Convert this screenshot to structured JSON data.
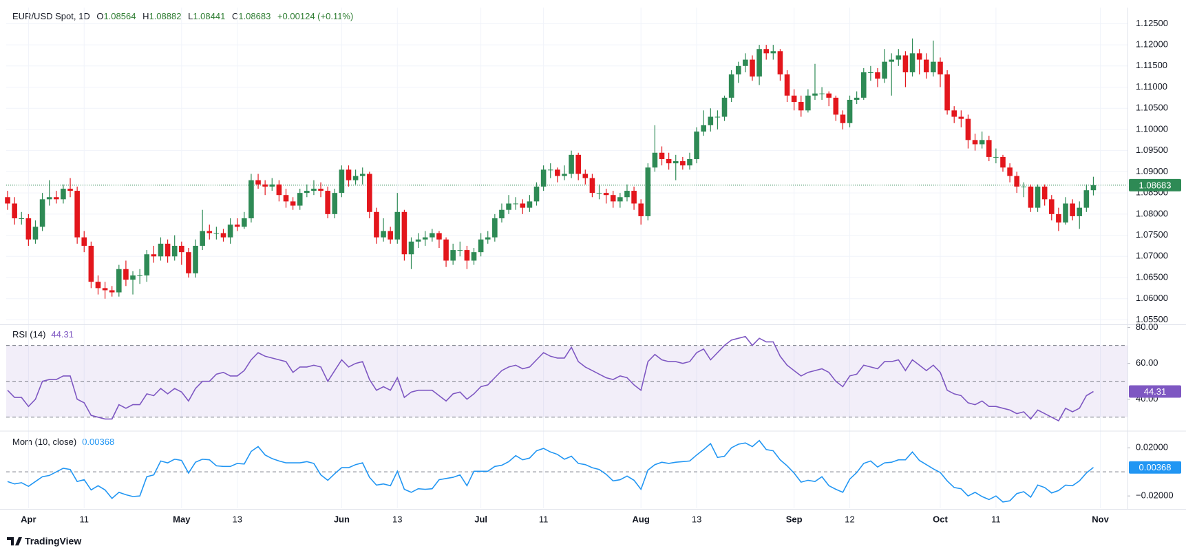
{
  "brand": "TradingView",
  "chart_data": [
    {
      "type": "candlestick",
      "title": "EUR/USD Spot, 1D",
      "ohlc_labels": [
        "O",
        "H",
        "L",
        "C"
      ],
      "change": "+0.00124 (+0.11%)",
      "open": [
        1.084,
        1.0825,
        1.079,
        1.079,
        1.074,
        1.077,
        1.0835,
        1.084,
        1.0835,
        1.086,
        1.0855,
        1.0745,
        1.0725,
        1.064,
        1.0625,
        1.062,
        1.0615,
        1.067,
        1.0645,
        1.0655,
        1.0655,
        1.0705,
        1.07,
        1.073,
        1.07,
        1.0725,
        1.071,
        1.066,
        1.0725,
        1.076,
        1.0755,
        1.0755,
        1.0745,
        1.0775,
        1.077,
        1.079,
        1.088,
        1.087,
        1.0865,
        1.087,
        1.0845,
        1.083,
        1.082,
        1.085,
        1.0855,
        1.086,
        1.0855,
        1.08,
        1.085,
        1.0905,
        1.088,
        1.089,
        1.0895,
        1.0805,
        1.0745,
        1.076,
        1.074,
        1.0805,
        1.0705,
        1.0735,
        1.074,
        1.0745,
        1.0755,
        1.074,
        1.069,
        1.0715,
        1.0715,
        1.069,
        1.071,
        1.074,
        1.0745,
        1.079,
        1.081,
        1.0825,
        1.0825,
        1.0815,
        1.083,
        1.0865,
        1.0905,
        1.0905,
        1.089,
        1.0895,
        1.094,
        1.0895,
        1.0885,
        1.085,
        1.085,
        1.0845,
        1.083,
        1.084,
        1.0855,
        1.0825,
        1.0795,
        1.091,
        1.0945,
        1.093,
        1.092,
        1.0925,
        1.0915,
        1.093,
        1.0995,
        1.101,
        1.103,
        1.103,
        1.1075,
        1.113,
        1.115,
        1.1165,
        1.1125,
        1.119,
        1.118,
        1.1185,
        1.113,
        1.108,
        1.1065,
        1.1045,
        1.108,
        1.1085,
        1.1085,
        1.1075,
        1.1035,
        1.1015,
        1.107,
        1.1075,
        1.1135,
        1.1135,
        1.112,
        1.116,
        1.1165,
        1.1175,
        1.1135,
        1.118,
        1.1165,
        1.1135,
        1.116,
        1.113,
        1.1045,
        1.103,
        1.1025,
        1.0975,
        1.0965,
        1.0975,
        1.0935,
        1.0935,
        1.091,
        1.089,
        1.0865,
        1.0865,
        1.0815,
        1.0865,
        1.0835,
        1.08,
        1.078,
        1.0825,
        1.0795,
        1.0815,
        1.08564
      ],
      "high": [
        1.0855,
        1.084,
        1.0805,
        1.08,
        1.0785,
        1.085,
        1.088,
        1.0855,
        1.087,
        1.0885,
        1.0865,
        1.076,
        1.0735,
        1.0655,
        1.064,
        1.063,
        1.068,
        1.069,
        1.0665,
        1.067,
        1.0715,
        1.0725,
        1.0745,
        1.074,
        1.075,
        1.0735,
        1.072,
        1.074,
        1.081,
        1.0775,
        1.077,
        1.0765,
        1.079,
        1.079,
        1.0805,
        1.0895,
        1.0895,
        1.088,
        1.0885,
        1.088,
        1.086,
        1.084,
        1.086,
        1.087,
        1.088,
        1.0875,
        1.0865,
        1.086,
        1.0915,
        1.0915,
        1.0905,
        1.091,
        1.09,
        1.0815,
        1.079,
        1.077,
        1.085,
        1.081,
        1.0745,
        1.0755,
        1.076,
        1.0765,
        1.076,
        1.0745,
        1.073,
        1.0735,
        1.0725,
        1.072,
        1.0755,
        1.076,
        1.08,
        1.0825,
        1.0845,
        1.084,
        1.0835,
        1.0845,
        1.0875,
        1.0915,
        1.092,
        1.091,
        1.0915,
        1.095,
        1.0945,
        1.0905,
        1.0895,
        1.087,
        1.086,
        1.0855,
        1.085,
        1.087,
        1.0865,
        1.0835,
        1.092,
        1.101,
        1.096,
        1.0945,
        1.094,
        1.0935,
        1.0945,
        1.1005,
        1.1045,
        1.105,
        1.1045,
        1.108,
        1.114,
        1.116,
        1.118,
        1.1175,
        1.12,
        1.12,
        1.12,
        1.119,
        1.114,
        1.1095,
        1.108,
        1.1095,
        1.1155,
        1.11,
        1.109,
        1.108,
        1.1045,
        1.108,
        1.109,
        1.1145,
        1.115,
        1.1145,
        1.119,
        1.118,
        1.119,
        1.1185,
        1.1215,
        1.119,
        1.118,
        1.121,
        1.117,
        1.114,
        1.1055,
        1.1045,
        1.1035,
        1.099,
        1.0995,
        1.0985,
        1.0955,
        1.094,
        1.092,
        1.09,
        1.0875,
        1.087,
        1.087,
        1.087,
        1.0845,
        1.0815,
        1.084,
        1.0835,
        1.083,
        1.087,
        1.08882
      ],
      "low": [
        1.081,
        1.0775,
        1.0775,
        1.0725,
        1.073,
        1.076,
        1.082,
        1.0825,
        1.0825,
        1.084,
        1.073,
        1.071,
        1.0625,
        1.061,
        1.06,
        1.0605,
        1.0605,
        1.063,
        1.061,
        1.0635,
        1.064,
        1.0685,
        1.069,
        1.0685,
        1.069,
        1.068,
        1.065,
        1.065,
        1.0715,
        1.074,
        1.074,
        1.0735,
        1.073,
        1.076,
        1.0765,
        1.078,
        1.086,
        1.0845,
        1.0855,
        1.083,
        1.0815,
        1.081,
        1.081,
        1.084,
        1.0845,
        1.084,
        1.079,
        1.079,
        1.084,
        1.0865,
        1.087,
        1.087,
        1.079,
        1.073,
        1.0735,
        1.073,
        1.073,
        1.069,
        1.067,
        1.072,
        1.0725,
        1.0735,
        1.072,
        1.0675,
        1.068,
        1.07,
        1.067,
        1.068,
        1.07,
        1.073,
        1.0735,
        1.078,
        1.08,
        1.081,
        1.08,
        1.0805,
        1.082,
        1.0855,
        1.0885,
        1.0875,
        1.088,
        1.0885,
        1.088,
        1.087,
        1.084,
        1.0835,
        1.0825,
        1.0815,
        1.0815,
        1.083,
        1.081,
        1.0775,
        1.0785,
        1.09,
        1.0915,
        1.0905,
        1.088,
        1.0905,
        1.0905,
        1.092,
        1.0985,
        1.0995,
        1.1,
        1.102,
        1.1065,
        1.111,
        1.1135,
        1.1115,
        1.1105,
        1.1165,
        1.1165,
        1.1115,
        1.1065,
        1.1045,
        1.103,
        1.104,
        1.107,
        1.107,
        1.1055,
        1.102,
        1.1,
        1.1005,
        1.106,
        1.107,
        1.1115,
        1.11,
        1.111,
        1.108,
        1.115,
        1.11,
        1.1125,
        1.113,
        1.112,
        1.1125,
        1.11,
        1.1035,
        1.1015,
        1.1005,
        1.0955,
        1.095,
        1.0955,
        1.0925,
        1.092,
        1.09,
        1.0875,
        1.085,
        1.084,
        1.0805,
        1.0805,
        1.082,
        1.0785,
        1.076,
        1.0775,
        1.0785,
        1.0765,
        1.0805,
        1.08441
      ],
      "close": [
        1.0825,
        1.079,
        1.079,
        1.074,
        1.077,
        1.0835,
        1.084,
        1.0835,
        1.086,
        1.0855,
        1.0745,
        1.0725,
        1.064,
        1.0625,
        1.062,
        1.0615,
        1.067,
        1.0645,
        1.0655,
        1.0655,
        1.0705,
        1.07,
        1.073,
        1.07,
        1.0725,
        1.071,
        1.066,
        1.0725,
        1.076,
        1.0755,
        1.0755,
        1.0745,
        1.0775,
        1.077,
        1.079,
        1.088,
        1.087,
        1.0865,
        1.087,
        1.0845,
        1.083,
        1.082,
        1.085,
        1.0855,
        1.086,
        1.0855,
        1.08,
        1.085,
        1.0905,
        1.088,
        1.089,
        1.0895,
        1.0805,
        1.0745,
        1.076,
        1.074,
        1.0805,
        1.0705,
        1.0735,
        1.074,
        1.0745,
        1.0755,
        1.074,
        1.069,
        1.0715,
        1.0715,
        1.069,
        1.071,
        1.074,
        1.0745,
        1.079,
        1.081,
        1.0825,
        1.0825,
        1.0815,
        1.083,
        1.0865,
        1.0905,
        1.0905,
        1.089,
        1.0895,
        1.094,
        1.0895,
        1.0885,
        1.085,
        1.085,
        1.0845,
        1.083,
        1.084,
        1.0855,
        1.0825,
        1.0795,
        1.091,
        1.0945,
        1.093,
        1.092,
        1.0925,
        1.0915,
        1.093,
        1.0995,
        1.101,
        1.103,
        1.103,
        1.1075,
        1.113,
        1.115,
        1.1165,
        1.1125,
        1.119,
        1.118,
        1.1185,
        1.113,
        1.108,
        1.1065,
        1.1045,
        1.108,
        1.1085,
        1.1085,
        1.1075,
        1.1035,
        1.1015,
        1.107,
        1.1075,
        1.1135,
        1.1135,
        1.112,
        1.116,
        1.1165,
        1.1175,
        1.1135,
        1.118,
        1.1165,
        1.1135,
        1.116,
        1.113,
        1.1045,
        1.103,
        1.1025,
        1.0975,
        1.0965,
        1.0975,
        1.0935,
        1.0935,
        1.091,
        1.089,
        1.0865,
        1.0865,
        1.0815,
        1.0865,
        1.0835,
        1.08,
        1.078,
        1.0825,
        1.0795,
        1.0815,
        1.08564,
        1.08683
      ],
      "up_color": "#2e8a55",
      "down_color": "#e3161c",
      "ylim": [
        1.0541,
        1.1288
      ],
      "yticks": [
        {
          "value": 1.055,
          "label": "1.05500"
        },
        {
          "value": 1.06,
          "label": "1.06000"
        },
        {
          "value": 1.065,
          "label": "1.06500"
        },
        {
          "value": 1.07,
          "label": "1.07000"
        },
        {
          "value": 1.075,
          "label": "1.07500"
        },
        {
          "value": 1.08,
          "label": "1.08000"
        },
        {
          "value": 1.085,
          "label": "1.08500"
        },
        {
          "value": 1.09,
          "label": "1.09000"
        },
        {
          "value": 1.095,
          "label": "1.09500"
        },
        {
          "value": 1.1,
          "label": "1.10000"
        },
        {
          "value": 1.105,
          "label": "1.10500"
        },
        {
          "value": 1.11,
          "label": "1.11000"
        },
        {
          "value": 1.115,
          "label": "1.11500"
        },
        {
          "value": 1.12,
          "label": "1.12000"
        },
        {
          "value": 1.125,
          "label": "1.12500"
        }
      ],
      "xlim": [
        -0.2,
        160.9
      ],
      "xticks": [
        {
          "value": 3,
          "label": "Apr"
        },
        {
          "value": 11,
          "label": "11"
        },
        {
          "value": 25,
          "label": "May"
        },
        {
          "value": 33,
          "label": "13"
        },
        {
          "value": 48,
          "label": "Jun"
        },
        {
          "value": 56,
          "label": "13"
        },
        {
          "value": 68,
          "label": "Jul"
        },
        {
          "value": 77,
          "label": "11"
        },
        {
          "value": 91,
          "label": "Aug"
        },
        {
          "value": 99,
          "label": "13"
        },
        {
          "value": 113,
          "label": "Sep"
        },
        {
          "value": 121,
          "label": "12"
        },
        {
          "value": 134,
          "label": "Oct"
        },
        {
          "value": 142,
          "label": "11"
        },
        {
          "value": 157,
          "label": "Nov"
        }
      ],
      "grid": true
    },
    {
      "type": "line",
      "title": "RSI (14)",
      "color": "#7e57c2",
      "values": [
        45,
        41,
        41,
        36,
        40,
        50,
        51,
        51,
        53,
        53,
        40,
        38,
        31,
        30,
        29,
        29,
        37,
        35,
        37,
        37,
        43,
        42,
        46,
        43,
        46,
        44,
        39,
        46,
        50,
        50,
        54,
        55,
        53,
        53,
        56,
        62,
        66,
        64,
        63,
        62,
        61,
        55,
        58,
        58,
        59,
        58,
        50,
        56,
        62,
        58,
        60,
        61,
        51,
        45,
        47,
        45,
        52,
        41,
        44,
        45,
        45,
        45,
        42,
        39,
        43,
        44,
        40,
        43,
        47,
        48,
        52,
        56,
        58,
        59,
        57,
        58,
        62,
        66,
        64,
        63,
        63,
        69,
        61,
        58,
        56,
        54,
        52,
        51,
        53,
        52,
        48,
        45,
        61,
        65,
        62,
        61,
        61,
        60,
        61,
        66,
        68,
        62,
        66,
        70,
        73,
        74,
        75,
        70,
        74,
        72,
        72,
        64,
        59,
        56,
        53,
        55,
        56,
        57,
        55,
        50,
        47,
        53,
        54,
        59,
        58,
        57,
        61,
        61,
        62,
        56,
        62,
        59,
        56,
        59,
        55,
        45,
        43,
        42,
        38,
        37,
        39,
        36,
        36,
        35,
        34,
        32,
        33,
        29,
        34,
        32,
        30,
        28,
        35,
        33,
        35,
        42,
        44.31
      ],
      "ylim": [
        23,
        81
      ],
      "yticks": [
        {
          "value": 40,
          "label": "40.00"
        },
        {
          "value": 60,
          "label": "60.00"
        },
        {
          "value": 80,
          "label": "80.00"
        }
      ],
      "bands": [
        30,
        50,
        70
      ]
    },
    {
      "type": "line",
      "title": "Mom (10, close)",
      "color": "#2196f3",
      "values": [
        -0.008,
        -0.01,
        -0.009,
        -0.012,
        -0.008,
        -0.004,
        -0.003,
        0.0,
        0.003,
        0.002,
        -0.008,
        -0.0065,
        -0.015,
        -0.0115,
        -0.015,
        -0.022,
        -0.017,
        -0.019,
        -0.0205,
        -0.02,
        -0.004,
        -0.0025,
        0.009,
        0.0075,
        0.0105,
        0.0095,
        -0.001,
        0.008,
        0.0105,
        0.01,
        0.005,
        0.0045,
        0.0045,
        0.007,
        0.0065,
        0.017,
        0.021,
        0.014,
        0.011,
        0.009,
        0.0075,
        0.0075,
        0.0075,
        0.0085,
        0.007,
        -0.0025,
        -0.007,
        -0.0015,
        0.0035,
        0.0035,
        0.006,
        0.0075,
        -0.0045,
        -0.011,
        -0.01,
        -0.0115,
        0.0005,
        -0.0145,
        -0.017,
        -0.014,
        -0.0145,
        -0.014,
        -0.0065,
        -0.0055,
        -0.0045,
        -0.0025,
        -0.0115,
        0.0005,
        0.0005,
        0.0005,
        0.0045,
        0.0055,
        0.0085,
        0.0135,
        0.01,
        0.0115,
        0.0175,
        0.0195,
        0.0165,
        0.0145,
        0.0105,
        0.013,
        0.007,
        0.006,
        0.0035,
        0.002,
        -0.002,
        -0.0075,
        -0.0065,
        -0.0035,
        -0.007,
        -0.0145,
        0.0015,
        0.006,
        0.008,
        0.007,
        0.008,
        0.0085,
        0.009,
        0.014,
        0.0185,
        0.0235,
        0.012,
        0.013,
        0.02,
        0.023,
        0.024,
        0.021,
        0.026,
        0.0185,
        0.0175,
        0.01,
        0.005,
        -0.001,
        -0.0085,
        -0.007,
        -0.008,
        -0.004,
        -0.0115,
        -0.0145,
        -0.017,
        -0.006,
        -0.0005,
        0.007,
        0.009,
        0.004,
        0.0075,
        0.008,
        0.01,
        0.01,
        0.0165,
        0.0095,
        0.006,
        0.0025,
        -0.0005,
        -0.0075,
        -0.013,
        -0.014,
        -0.02,
        -0.017,
        -0.0205,
        -0.023,
        -0.02,
        -0.025,
        -0.024,
        -0.018,
        -0.0165,
        -0.021,
        -0.011,
        -0.013,
        -0.0175,
        -0.0155,
        -0.011,
        -0.0115,
        -0.0075,
        -0.0009,
        0.00368
      ],
      "ylim": [
        -0.0302,
        0.0327
      ],
      "yticks": [
        {
          "value": -0.02,
          "label": "−0.02000"
        },
        {
          "value": 0.02,
          "label": "0.02000"
        }
      ],
      "baseline": 0
    }
  ]
}
